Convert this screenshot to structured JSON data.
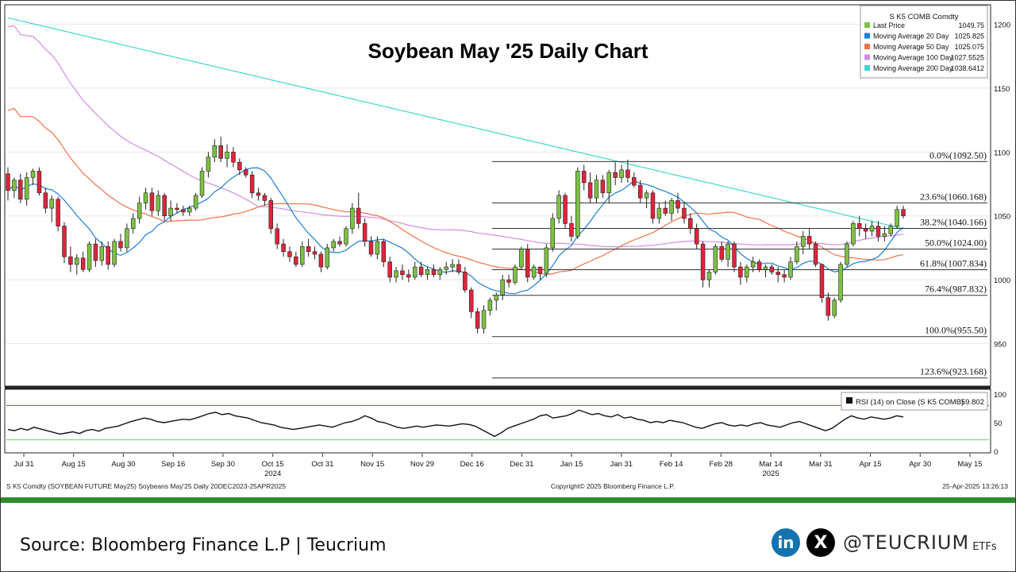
{
  "chart_data": {
    "type": "candlestick",
    "title": "Soybean May '25 Daily Chart",
    "legend": {
      "title": "S K5 COMB Comdty",
      "placement": "top-right",
      "items": [
        {
          "label": "Last Price",
          "value": "1049.75",
          "color": "#7cc242"
        },
        {
          "label": "Moving Average 20 Day",
          "value": "1025.825",
          "color": "#1e7fd6"
        },
        {
          "label": "Moving Average 50 Day",
          "value": "1025.075",
          "color": "#f0724a"
        },
        {
          "label": "Moving Average 100 Day",
          "value": "1027.5525",
          "color": "#d28ce8"
        },
        {
          "label": "Moving Average 200 Day",
          "value": "1038.6412",
          "color": "#3fd6d0"
        }
      ]
    },
    "x_ticks": [
      "Jul 31",
      "Aug 15",
      "Aug 30",
      "Sep 16",
      "Sep 30",
      "Oct 15",
      "Oct 31",
      "Nov 15",
      "Nov 29",
      "Dec 16",
      "Dec 31",
      "Jan 15",
      "Jan 31",
      "Feb 14",
      "Feb 28",
      "Mar 14",
      "Mar 31",
      "Apr 15",
      "Apr 30",
      "May 15"
    ],
    "x_ticks_years": [
      {
        "label": "2024",
        "under": "Oct 15"
      },
      {
        "label": "2025",
        "under": "Mar 14"
      }
    ],
    "y_ticks": [
      950,
      1000,
      1050,
      1100,
      1150,
      1200
    ],
    "ylim": [
      918,
      1214
    ],
    "fib_levels": [
      {
        "label": "0.0%(1092.50)",
        "value": 1092.5
      },
      {
        "label": "23.6%(1060.168)",
        "value": 1060.168
      },
      {
        "label": "38.2%(1040.166)",
        "value": 1040.166
      },
      {
        "label": "50.0%(1024.00)",
        "value": 1024.0
      },
      {
        "label": "61.8%(1007.834)",
        "value": 1007.834
      },
      {
        "label": "76.4%(987.832)",
        "value": 987.832
      },
      {
        "label": "100.0%(955.50)",
        "value": 955.5
      },
      {
        "label": "123.6%(923.168)",
        "value": 923.168
      }
    ],
    "candles": [
      [
        1083,
        1088,
        1062,
        1070
      ],
      [
        1070,
        1080,
        1064,
        1078
      ],
      [
        1078,
        1083,
        1060,
        1063
      ],
      [
        1063,
        1084,
        1058,
        1080
      ],
      [
        1080,
        1087,
        1074,
        1085
      ],
      [
        1085,
        1088,
        1066,
        1068
      ],
      [
        1068,
        1072,
        1052,
        1056
      ],
      [
        1056,
        1066,
        1045,
        1063
      ],
      [
        1063,
        1065,
        1038,
        1042
      ],
      [
        1042,
        1045,
        1013,
        1018
      ],
      [
        1018,
        1026,
        1006,
        1012
      ],
      [
        1012,
        1020,
        1004,
        1017
      ],
      [
        1017,
        1022,
        1006,
        1008
      ],
      [
        1008,
        1030,
        1006,
        1028
      ],
      [
        1028,
        1032,
        1010,
        1015
      ],
      [
        1015,
        1030,
        1011,
        1026
      ],
      [
        1026,
        1030,
        1008,
        1012
      ],
      [
        1012,
        1032,
        1010,
        1030
      ],
      [
        1030,
        1036,
        1022,
        1025
      ],
      [
        1025,
        1044,
        1022,
        1040
      ],
      [
        1040,
        1052,
        1036,
        1048
      ],
      [
        1048,
        1065,
        1044,
        1060
      ],
      [
        1060,
        1072,
        1055,
        1068
      ],
      [
        1068,
        1072,
        1050,
        1054
      ],
      [
        1054,
        1070,
        1050,
        1066
      ],
      [
        1066,
        1068,
        1046,
        1050
      ],
      [
        1050,
        1062,
        1046,
        1056
      ],
      [
        1056,
        1060,
        1052,
        1055
      ],
      [
        1055,
        1058,
        1050,
        1053
      ],
      [
        1053,
        1058,
        1050,
        1056
      ],
      [
        1056,
        1068,
        1054,
        1066
      ],
      [
        1066,
        1088,
        1064,
        1085
      ],
      [
        1085,
        1100,
        1080,
        1096
      ],
      [
        1096,
        1110,
        1092,
        1105
      ],
      [
        1105,
        1112,
        1092,
        1095
      ],
      [
        1095,
        1106,
        1088,
        1100
      ],
      [
        1100,
        1104,
        1088,
        1092
      ],
      [
        1092,
        1095,
        1082,
        1086
      ],
      [
        1086,
        1088,
        1080,
        1082
      ],
      [
        1082,
        1085,
        1064,
        1068
      ],
      [
        1068,
        1072,
        1062,
        1066
      ],
      [
        1066,
        1068,
        1058,
        1062
      ],
      [
        1062,
        1064,
        1036,
        1040
      ],
      [
        1040,
        1044,
        1024,
        1028
      ],
      [
        1028,
        1032,
        1018,
        1022
      ],
      [
        1022,
        1026,
        1014,
        1018
      ],
      [
        1018,
        1022,
        1010,
        1012
      ],
      [
        1012,
        1030,
        1010,
        1026
      ],
      [
        1026,
        1032,
        1018,
        1022
      ],
      [
        1022,
        1026,
        1016,
        1020
      ],
      [
        1020,
        1022,
        1006,
        1010
      ],
      [
        1010,
        1028,
        1008,
        1025
      ],
      [
        1025,
        1032,
        1022,
        1030
      ],
      [
        1030,
        1034,
        1026,
        1028
      ],
      [
        1028,
        1042,
        1026,
        1040
      ],
      [
        1040,
        1060,
        1036,
        1056
      ],
      [
        1056,
        1068,
        1040,
        1044
      ],
      [
        1044,
        1048,
        1026,
        1030
      ],
      [
        1030,
        1034,
        1018,
        1020
      ],
      [
        1020,
        1034,
        1016,
        1030
      ],
      [
        1030,
        1032,
        1010,
        1014
      ],
      [
        1014,
        1018,
        998,
        1002
      ],
      [
        1002,
        1010,
        998,
        1007
      ],
      [
        1007,
        1012,
        1000,
        1004
      ],
      [
        1004,
        1008,
        998,
        1002
      ],
      [
        1002,
        1014,
        1000,
        1010
      ],
      [
        1010,
        1014,
        1002,
        1004
      ],
      [
        1004,
        1010,
        1000,
        1008
      ],
      [
        1008,
        1012,
        1002,
        1004
      ],
      [
        1004,
        1010,
        1000,
        1008
      ],
      [
        1008,
        1014,
        1004,
        1010
      ],
      [
        1010,
        1016,
        1006,
        1012
      ],
      [
        1012,
        1016,
        1004,
        1006
      ],
      [
        1006,
        1010,
        990,
        992
      ],
      [
        992,
        994,
        970,
        975
      ],
      [
        975,
        978,
        958,
        962
      ],
      [
        962,
        980,
        958,
        976
      ],
      [
        976,
        986,
        972,
        984
      ],
      [
        984,
        990,
        976,
        988
      ],
      [
        988,
        1004,
        984,
        1000
      ],
      [
        1000,
        1004,
        994,
        998
      ],
      [
        998,
        1012,
        996,
        1010
      ],
      [
        1010,
        1026,
        1008,
        1024
      ],
      [
        1024,
        1028,
        998,
        1002
      ],
      [
        1002,
        1012,
        1000,
        1010
      ],
      [
        1010,
        1008,
        1000,
        1005
      ],
      [
        1005,
        1028,
        1002,
        1025
      ],
      [
        1025,
        1052,
        1022,
        1048
      ],
      [
        1048,
        1070,
        1044,
        1066
      ],
      [
        1066,
        1068,
        1040,
        1044
      ],
      [
        1044,
        1050,
        1030,
        1034
      ],
      [
        1034,
        1088,
        1032,
        1085
      ],
      [
        1085,
        1090,
        1070,
        1076
      ],
      [
        1076,
        1084,
        1060,
        1064
      ],
      [
        1064,
        1082,
        1060,
        1078
      ],
      [
        1078,
        1082,
        1064,
        1068
      ],
      [
        1068,
        1086,
        1060,
        1084
      ],
      [
        1084,
        1092,
        1074,
        1080
      ],
      [
        1080,
        1090,
        1076,
        1086
      ],
      [
        1086,
        1094,
        1076,
        1080
      ],
      [
        1080,
        1084,
        1072,
        1074
      ],
      [
        1074,
        1078,
        1060,
        1064
      ],
      [
        1064,
        1070,
        1056,
        1068
      ],
      [
        1068,
        1070,
        1044,
        1048
      ],
      [
        1048,
        1060,
        1044,
        1056
      ],
      [
        1056,
        1062,
        1050,
        1052
      ],
      [
        1052,
        1064,
        1046,
        1062
      ],
      [
        1062,
        1068,
        1052,
        1056
      ],
      [
        1056,
        1060,
        1044,
        1048
      ],
      [
        1048,
        1052,
        1036,
        1040
      ],
      [
        1040,
        1044,
        1024,
        1028
      ],
      [
        1028,
        1030,
        994,
        1000
      ],
      [
        1000,
        1008,
        994,
        1006
      ],
      [
        1006,
        1028,
        1004,
        1026
      ],
      [
        1026,
        1030,
        1014,
        1016
      ],
      [
        1016,
        1030,
        1010,
        1028
      ],
      [
        1028,
        1030,
        1006,
        1010
      ],
      [
        1010,
        1014,
        996,
        1002
      ],
      [
        1002,
        1012,
        998,
        1010
      ],
      [
        1010,
        1018,
        1006,
        1014
      ],
      [
        1014,
        1016,
        1006,
        1008
      ],
      [
        1008,
        1012,
        1002,
        1010
      ],
      [
        1010,
        1012,
        1004,
        1006
      ],
      [
        1006,
        1010,
        998,
        1004
      ],
      [
        1004,
        1008,
        998,
        1002
      ],
      [
        1002,
        1018,
        1000,
        1014
      ],
      [
        1014,
        1030,
        1012,
        1026
      ],
      [
        1026,
        1038,
        1020,
        1034
      ],
      [
        1034,
        1040,
        1024,
        1028
      ],
      [
        1028,
        1030,
        1010,
        1012
      ],
      [
        1012,
        1010,
        982,
        986
      ],
      [
        986,
        990,
        968,
        972
      ],
      [
        972,
        986,
        970,
        984
      ],
      [
        984,
        1014,
        982,
        1012
      ],
      [
        1012,
        1030,
        1010,
        1028
      ],
      [
        1028,
        1046,
        1026,
        1044
      ],
      [
        1044,
        1050,
        1034,
        1040
      ],
      [
        1040,
        1044,
        1032,
        1038
      ],
      [
        1038,
        1046,
        1034,
        1042
      ],
      [
        1042,
        1046,
        1030,
        1034
      ],
      [
        1034,
        1042,
        1030,
        1036
      ],
      [
        1036,
        1044,
        1034,
        1042
      ],
      [
        1042,
        1058,
        1040,
        1055
      ],
      [
        1055,
        1058,
        1048,
        1050
      ]
    ],
    "rsi": {
      "label": "RSI (14)  on Close (S K5 COMB)",
      "value": "59.802",
      "y_ticks": [
        0,
        50,
        100
      ],
      "overbought": 80,
      "oversold": 20,
      "values": [
        38,
        36,
        40,
        37,
        42,
        39,
        36,
        33,
        30,
        32,
        34,
        31,
        36,
        38,
        35,
        40,
        42,
        44,
        48,
        52,
        55,
        58,
        56,
        52,
        50,
        52,
        54,
        56,
        55,
        58,
        62,
        66,
        68,
        64,
        66,
        62,
        60,
        58,
        54,
        50,
        48,
        46,
        42,
        40,
        38,
        40,
        42,
        44,
        46,
        44,
        42,
        46,
        50,
        52,
        56,
        62,
        58,
        52,
        50,
        46,
        42,
        40,
        42,
        44,
        42,
        44,
        46,
        45,
        44,
        46,
        48,
        47,
        44,
        38,
        32,
        26,
        32,
        40,
        44,
        48,
        52,
        56,
        62,
        64,
        58,
        60,
        62,
        66,
        72,
        68,
        64,
        66,
        62,
        60,
        64,
        58,
        60,
        56,
        54,
        50,
        52,
        50,
        54,
        52,
        50,
        46,
        42,
        40,
        44,
        48,
        50,
        46,
        44,
        46,
        44,
        48,
        50,
        46,
        44,
        42,
        46,
        50,
        52,
        48,
        44,
        40,
        36,
        40,
        48,
        56,
        62,
        58,
        56,
        60,
        58,
        56,
        58,
        62,
        60
      ]
    }
  },
  "footer_meta": {
    "left": "S K5 Comdty (SOYBEAN FUTURE    May25) Soybeans May'25  Daily 20DEC2023-25APR2025",
    "center": "Copyright© 2025 Bloomberg Finance L.P.",
    "right": "25-Apr-2025 13:26:13"
  },
  "source": "Source: Bloomberg Finance L.P | Teucrium",
  "social": {
    "linkedin": "in",
    "x": "X",
    "handle": "@TEUCRIUM",
    "suffix": "ETFs"
  },
  "colors": {
    "up": "#7cc242",
    "down": "#e0243c",
    "ma20": "#1e7fd6",
    "ma50": "#f0724a",
    "ma100": "#d28ce8",
    "ma200": "#3fd6d0",
    "brand_green": "#2e8b2e"
  }
}
